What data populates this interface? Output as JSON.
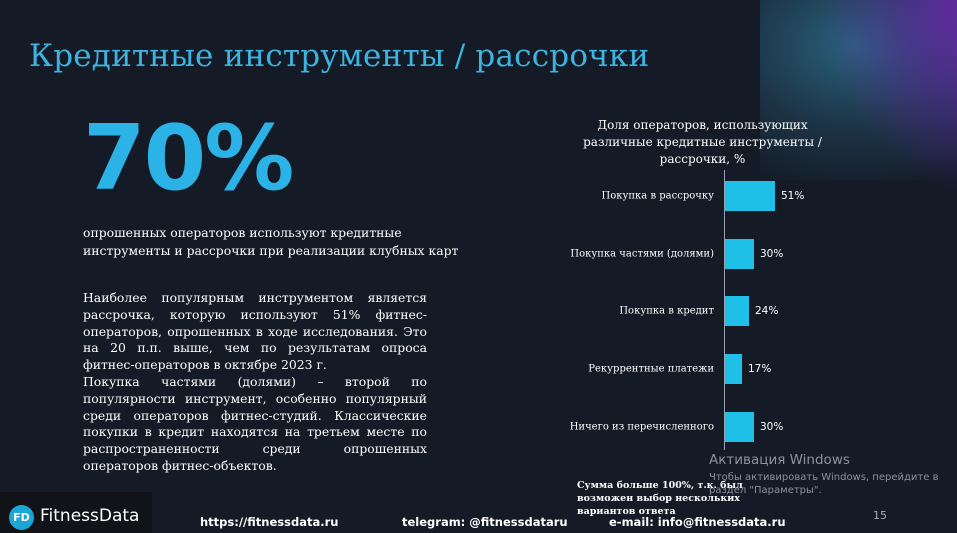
{
  "slide": {
    "title": "Кредитные инструменты / рассрочки",
    "big_number": "70%",
    "big_caption": "опрошенных операторов используют кредитные инструменты и рассрочки при реализации клубных карт",
    "paragraphs": [
      "Наиболее популярным инструментом является рассрочка, которую используют 51% фитнес-операторов, опрошенных в ходе исследования. Это на 20 п.п. выше, чем по результатам опроса фитнес-операторов в октябре 2023 г.",
      "Покупка частями (долями) – второй по популярности инструмент, особенно популярный среди операторов фитнес-студий. Классические покупки в кредит находятся на третьем месте по распространенности среди опрошенных операторов фитнес-объектов."
    ],
    "note": "Сумма больше 100%, т.к. был возможен выбор нескольких вариантов ответа",
    "page_number": "15"
  },
  "chart_data": {
    "type": "bar",
    "orientation": "horizontal",
    "title": "Доля операторов, использующих различные кредитные инструменты / рассрочки, %",
    "categories": [
      "Покупка в рассрочку",
      "Покупка частями (долями)",
      "Покупка в кредит",
      "Рекуррентные платежи",
      "Ничего из перечисленного"
    ],
    "values": [
      51,
      30,
      24,
      17,
      30
    ],
    "value_labels": [
      "51%",
      "30%",
      "24%",
      "17%",
      "30%"
    ],
    "xlabel": "",
    "ylabel": "",
    "grid": false,
    "bar_color": "#1ec0e8"
  },
  "footer": {
    "logo_initials": "FD",
    "logo_text": "FitnessData",
    "website": "https://fitnessdata.ru",
    "telegram": "telegram: @fitnessdataru",
    "email": "e-mail: info@fitnessdata.ru"
  },
  "windows_overlay": {
    "line1": "Активация Windows",
    "line2": "Чтобы активировать Windows, перейдите в раздел \"Параметры\"."
  },
  "colors": {
    "background": "#141b27",
    "accent": "#2bb2e6",
    "title": "#3db3df"
  }
}
